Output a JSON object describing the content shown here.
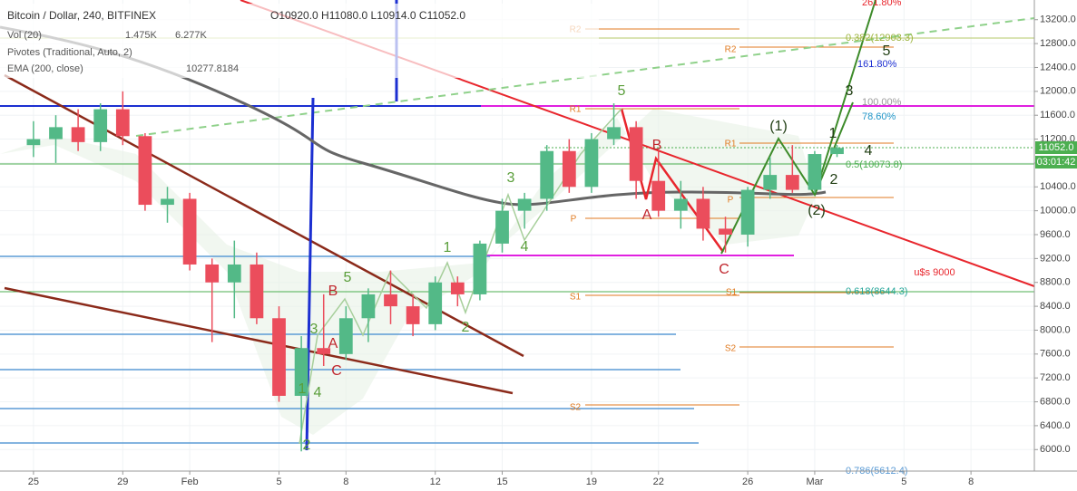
{
  "header": {
    "title": "Bitcoin / Dollar, 240, BITFINEX",
    "ohlc": "O10920.0 H11080.0 L10914.0 C11052.0",
    "volume": "Vol (20)",
    "volume_value": "1.475K",
    "volume_ma": "6.277K",
    "pivots": "Pivotes (Traditional, Auto, 2)",
    "ema": "EMA (200, close)",
    "ema_value": "10277.8184",
    "last_price": "11052.0",
    "countdown": "03:01:42"
  },
  "annotations": [
    "5",
    "3",
    "4",
    "1",
    "2",
    "5",
    "3",
    "4",
    "1",
    "2",
    "B",
    "A",
    "C",
    "B",
    "A",
    "C",
    "(1)",
    "(2)",
    "1",
    "2",
    "3",
    "4",
    "5",
    "u$s 9000",
    "R2",
    "R1",
    "P",
    "S1",
    "S2",
    "0.382(12903.3)",
    "161.80%",
    "100.00%",
    "78.60%",
    "0.618(8644.3)",
    "0.5(10073.8)",
    "0.786(5612.4)",
    "261.80%"
  ],
  "chart_data": {
    "type": "candlestick",
    "x": [
      0,
      1,
      2,
      3,
      4,
      5,
      6,
      7,
      8,
      9,
      10,
      11,
      12,
      13,
      14,
      15,
      16,
      17,
      18,
      19,
      20,
      21,
      22,
      23,
      24,
      25,
      26,
      27,
      28,
      29,
      30,
      31,
      32,
      33,
      34,
      35,
      36
    ],
    "open": [
      11100,
      11200,
      11400,
      11150,
      11700,
      11250,
      10100,
      10200,
      9100,
      8800,
      9100,
      8200,
      6900,
      7700,
      7600,
      8200,
      8600,
      8400,
      8100,
      8800,
      8600,
      9450,
      10000,
      10200,
      11000,
      10400,
      11200,
      11400,
      10500,
      10000,
      10200,
      9700,
      9600,
      10350,
      10600,
      10350,
      10950
    ],
    "high": [
      11500,
      11600,
      11700,
      11800,
      12000,
      11300,
      10400,
      10300,
      9200,
      9500,
      9300,
      8400,
      7900,
      8600,
      8400,
      8700,
      9000,
      8600,
      8900,
      8900,
      9500,
      10200,
      10300,
      11100,
      11200,
      11300,
      11800,
      11500,
      11000,
      10500,
      10400,
      9900,
      10400,
      10900,
      11100,
      11000,
      11100
    ],
    "low": [
      10900,
      10800,
      11000,
      11000,
      11100,
      10000,
      9800,
      9000,
      7800,
      8200,
      8100,
      6800,
      5970,
      7400,
      7500,
      7800,
      8100,
      7900,
      8000,
      8400,
      8500,
      9300,
      9700,
      10000,
      10300,
      10300,
      11100,
      10200,
      9900,
      9700,
      9500,
      9300,
      9400,
      10200,
      10300,
      10300,
      10900
    ],
    "close": [
      11200,
      11400,
      11150,
      11700,
      11250,
      10100,
      10200,
      9100,
      8800,
      9100,
      8200,
      6900,
      7700,
      7600,
      8200,
      8600,
      8400,
      8100,
      8800,
      8600,
      9450,
      10000,
      10200,
      11000,
      10400,
      11200,
      11400,
      10500,
      10000,
      10200,
      9700,
      9600,
      10350,
      10600,
      10350,
      10950,
      11052
    ],
    "up_color": "#53b987",
    "down_color": "#eb4d5c",
    "xlim": [
      -1.5,
      44.84
    ],
    "xticks": [
      {
        "value": 0,
        "label": "25"
      },
      {
        "value": 4,
        "label": "29"
      },
      {
        "value": 7,
        "label": "Feb"
      },
      {
        "value": 11,
        "label": "5"
      },
      {
        "value": 14,
        "label": "8"
      },
      {
        "value": 18,
        "label": "12"
      },
      {
        "value": 21,
        "label": "15"
      },
      {
        "value": 25,
        "label": "19"
      },
      {
        "value": 28,
        "label": "22"
      },
      {
        "value": 32,
        "label": "26"
      },
      {
        "value": 35,
        "label": "Mar"
      },
      {
        "value": 39,
        "label": "5"
      },
      {
        "value": 42,
        "label": "8"
      }
    ],
    "ylim": [
      5640,
      13530
    ],
    "yticks": [
      {
        "value": 6000,
        "label": "6000.0"
      },
      {
        "value": 6400,
        "label": "6400.0"
      },
      {
        "value": 6800,
        "label": "6800.0"
      },
      {
        "value": 7200,
        "label": "7200.0"
      },
      {
        "value": 7600,
        "label": "7600.0"
      },
      {
        "value": 8000,
        "label": "8000.0"
      },
      {
        "value": 8400,
        "label": "8400.0"
      },
      {
        "value": 8800,
        "label": "8800.0"
      },
      {
        "value": 9200,
        "label": "9200.0"
      },
      {
        "value": 9600,
        "label": "9600.0"
      },
      {
        "value": 10000,
        "label": "10000.0"
      },
      {
        "value": 10400,
        "label": "10400.0"
      },
      {
        "value": 10800,
        "label": "10800.0"
      },
      {
        "value": 11200,
        "label": "11200.0"
      },
      {
        "value": 11600,
        "label": "11600.0"
      },
      {
        "value": 12000,
        "label": "12000.0"
      },
      {
        "value": 12400,
        "label": "12400.0"
      },
      {
        "value": 12800,
        "label": "12800.0"
      },
      {
        "value": 13200,
        "label": "13200.0"
      }
    ],
    "grid": true
  }
}
